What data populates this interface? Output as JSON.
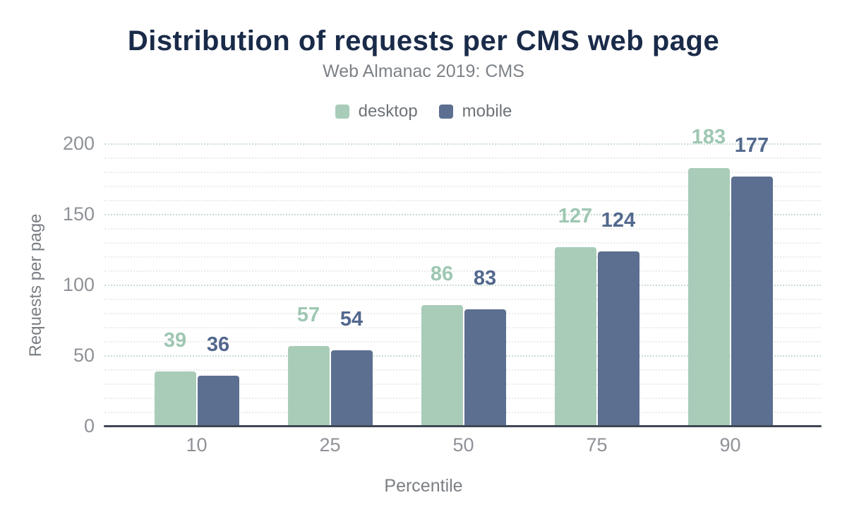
{
  "header": {
    "title": "Distribution of requests per CMS web page",
    "subtitle": "Web Almanac 2019: CMS"
  },
  "colors": {
    "title": "#1a2b49",
    "subtitle": "#7d8287",
    "axis_title": "#7a7f84",
    "tick_label": "#8e9297",
    "axis_line": "#3f4754",
    "grid_major": "#c9ddd2",
    "grid_minor": "#ebebeb",
    "desktop_bar": "#a9ccb8",
    "mobile_bar": "#5c6f90",
    "desktop_label": "#9ec7b2",
    "mobile_label": "#52688d",
    "legend_label": "#6e7378"
  },
  "chart_data": {
    "type": "bar",
    "title": "Distribution of requests per CMS web page",
    "subtitle": "Web Almanac 2019: CMS",
    "categories": [
      "10",
      "25",
      "50",
      "75",
      "90"
    ],
    "series": [
      {
        "name": "desktop",
        "color": "#a9ccb8",
        "label_color": "#9ec7b2",
        "values": [
          39,
          57,
          86,
          127,
          183
        ]
      },
      {
        "name": "mobile",
        "color": "#5c6f90",
        "label_color": "#52688d",
        "values": [
          36,
          54,
          83,
          124,
          177
        ]
      }
    ],
    "xlabel": "Percentile",
    "ylabel": "Requests per page",
    "ylim": [
      0,
      200
    ],
    "yticks": [
      0,
      50,
      100,
      150,
      200
    ],
    "grid": "horizontal dotted, minor step 10, major step 50",
    "grid_minor_step": 10,
    "grid_major_step": 50,
    "legend_position": "top",
    "data_labels": true
  }
}
